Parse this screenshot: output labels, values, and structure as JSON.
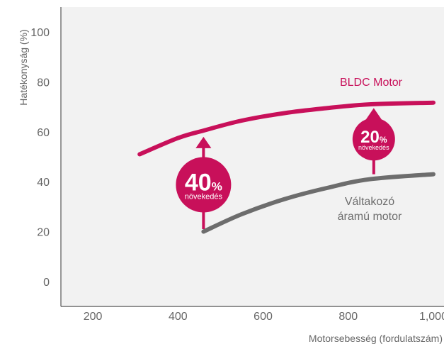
{
  "colors": {
    "plot_background": "#f2f2f2",
    "axis": "#555555",
    "bldc": "#c8105a",
    "ac": "#6d6d6d",
    "tick_text": "#666666"
  },
  "chart_data": {
    "type": "line",
    "title": "",
    "xlabel": "Motorsebesség (fordulatszám)",
    "ylabel": "Hatékonyság (%)",
    "xlim": [
      125,
      1025
    ],
    "ylim": [
      -10,
      110
    ],
    "x_ticks": [
      200,
      400,
      600,
      800,
      1000
    ],
    "x_tick_labels": [
      "200",
      "400",
      "600",
      "800",
      "1,000"
    ],
    "y_ticks": [
      0,
      20,
      40,
      60,
      80,
      100
    ],
    "y_tick_labels": [
      "0",
      "20",
      "40",
      "60",
      "80",
      "100"
    ],
    "grid": false,
    "series": [
      {
        "name": "BLDC Motor",
        "label_lines": [
          "BLDC Motor"
        ],
        "color": "#c8105a",
        "x": [
          310,
          400,
          460,
          550,
          650,
          750,
          850,
          1000
        ],
        "y": [
          51,
          57.5,
          60.5,
          64.5,
          67.5,
          69.5,
          71,
          71.7
        ]
      },
      {
        "name": "Váltakozó áramú motor",
        "label_lines": [
          "Váltakozó",
          "áramú motor"
        ],
        "color": "#6d6d6d",
        "x": [
          460,
          550,
          650,
          750,
          850,
          1000
        ],
        "y": [
          20,
          27,
          33,
          37.5,
          41,
          43
        ]
      }
    ],
    "annotations": [
      {
        "big": "40",
        "pct": "%",
        "small": "növekedés",
        "x": 460,
        "y_from": 21,
        "y_to": 58
      },
      {
        "big": "20",
        "pct": "%",
        "small": "növekedés",
        "x": 860,
        "y_from": 43,
        "y_to": 69.5
      }
    ]
  }
}
